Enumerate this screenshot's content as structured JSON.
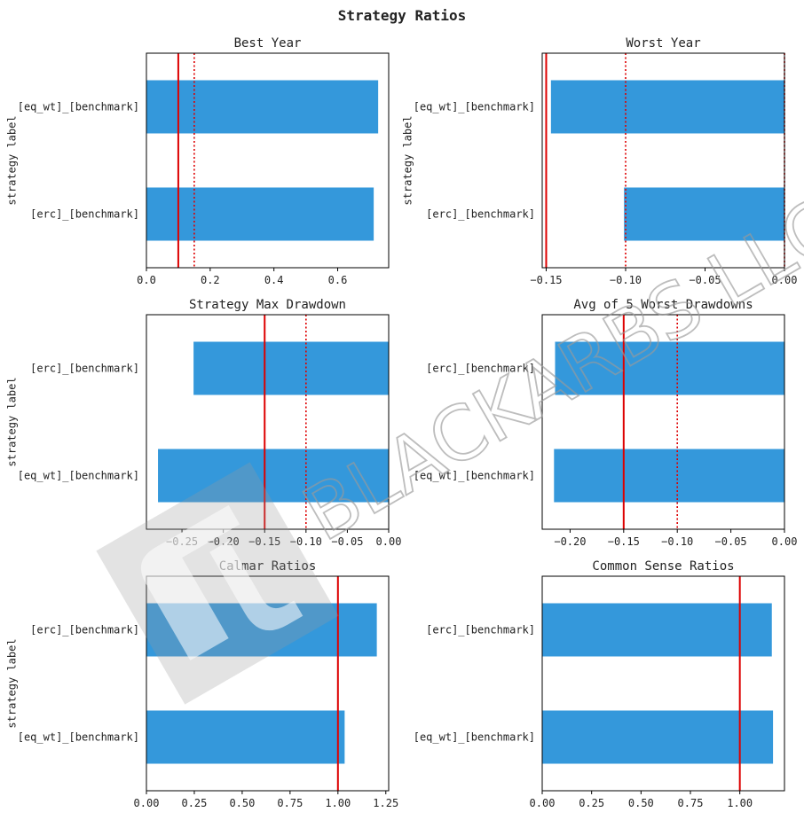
{
  "title": "Strategy Ratios",
  "watermark": {
    "text": "BLACKARBS LLC"
  },
  "colors": {
    "bar": "#3498db",
    "refline": "#dd0000",
    "axis": "#000000",
    "text": "#222222"
  },
  "chart_data": [
    {
      "type": "bar",
      "orientation": "horizontal",
      "title": "Best Year",
      "ylabel": "strategy label",
      "xlabel": "",
      "categories": [
        "[eq_wt]_[benchmark]",
        "[erc]_[benchmark]"
      ],
      "values": [
        0.727,
        0.713
      ],
      "xlim": [
        0.0,
        0.76
      ],
      "xticks": [
        0.0,
        0.2,
        0.4,
        0.6
      ],
      "xtick_labels": [
        "0.0",
        "0.2",
        "0.4",
        "0.6"
      ],
      "reference_lines": [
        {
          "x": 0.1,
          "style": "solid"
        },
        {
          "x": 0.15,
          "style": "dotted"
        }
      ]
    },
    {
      "type": "bar",
      "orientation": "horizontal",
      "title": "Worst Year",
      "ylabel": "strategy label",
      "xlabel": "",
      "categories": [
        "[eq_wt]_[benchmark]",
        "[erc]_[benchmark]"
      ],
      "values": [
        -0.147,
        -0.101
      ],
      "xlim": [
        -0.1525,
        0.0
      ],
      "xticks": [
        -0.15,
        -0.1,
        -0.05,
        0.0
      ],
      "xtick_labels": [
        "−0.15",
        "−0.10",
        "−0.05",
        "0.00"
      ],
      "reference_lines": [
        {
          "x": -0.15,
          "style": "solid"
        },
        {
          "x": -0.1,
          "style": "dotted"
        },
        {
          "x": 0.0,
          "style": "dotted"
        }
      ]
    },
    {
      "type": "bar",
      "orientation": "horizontal",
      "title": "Strategy Max Drawdown",
      "ylabel": "strategy label",
      "xlabel": "",
      "categories": [
        "[erc]_[benchmark]",
        "[eq_wt]_[benchmark]"
      ],
      "values": [
        -0.236,
        -0.279
      ],
      "xlim": [
        -0.293,
        0.0
      ],
      "xticks": [
        -0.25,
        -0.2,
        -0.15,
        -0.1,
        -0.05,
        0.0
      ],
      "xtick_labels": [
        "−0.25",
        "−0.20",
        "−0.15",
        "−0.10",
        "−0.05",
        "0.00"
      ],
      "reference_lines": [
        {
          "x": -0.15,
          "style": "solid"
        },
        {
          "x": -0.1,
          "style": "dotted"
        }
      ]
    },
    {
      "type": "bar",
      "orientation": "horizontal",
      "title": "Avg of 5 Worst Drawdowns",
      "ylabel": "",
      "xlabel": "",
      "categories": [
        "[erc]_[benchmark]",
        "[eq_wt]_[benchmark]"
      ],
      "values": [
        -0.214,
        -0.215
      ],
      "xlim": [
        -0.226,
        0.0
      ],
      "xticks": [
        -0.2,
        -0.15,
        -0.1,
        -0.05,
        0.0
      ],
      "xtick_labels": [
        "−0.20",
        "−0.15",
        "−0.10",
        "−0.05",
        "0.00"
      ],
      "reference_lines": [
        {
          "x": -0.15,
          "style": "solid"
        },
        {
          "x": -0.1,
          "style": "dotted"
        }
      ]
    },
    {
      "type": "bar",
      "orientation": "horizontal",
      "title": "Calmar Ratios",
      "ylabel": "strategy label",
      "xlabel": "",
      "categories": [
        "[erc]_[benchmark]",
        "[eq_wt]_[benchmark]"
      ],
      "values": [
        1.203,
        1.035
      ],
      "xlim": [
        0.0,
        1.265
      ],
      "xticks": [
        0.0,
        0.25,
        0.5,
        0.75,
        1.0,
        1.25
      ],
      "xtick_labels": [
        "0.00",
        "0.25",
        "0.50",
        "0.75",
        "1.00",
        "1.25"
      ],
      "reference_lines": [
        {
          "x": 1.0,
          "style": "solid"
        }
      ]
    },
    {
      "type": "bar",
      "orientation": "horizontal",
      "title": "Common Sense Ratios",
      "ylabel": "",
      "xlabel": "",
      "categories": [
        "[erc]_[benchmark]",
        "[eq_wt]_[benchmark]"
      ],
      "values": [
        1.162,
        1.168
      ],
      "xlim": [
        0.0,
        1.226
      ],
      "xticks": [
        0.0,
        0.25,
        0.5,
        0.75,
        1.0
      ],
      "xtick_labels": [
        "0.00",
        "0.25",
        "0.50",
        "0.75",
        "1.00"
      ],
      "reference_lines": [
        {
          "x": 1.0,
          "style": "solid"
        }
      ]
    }
  ]
}
